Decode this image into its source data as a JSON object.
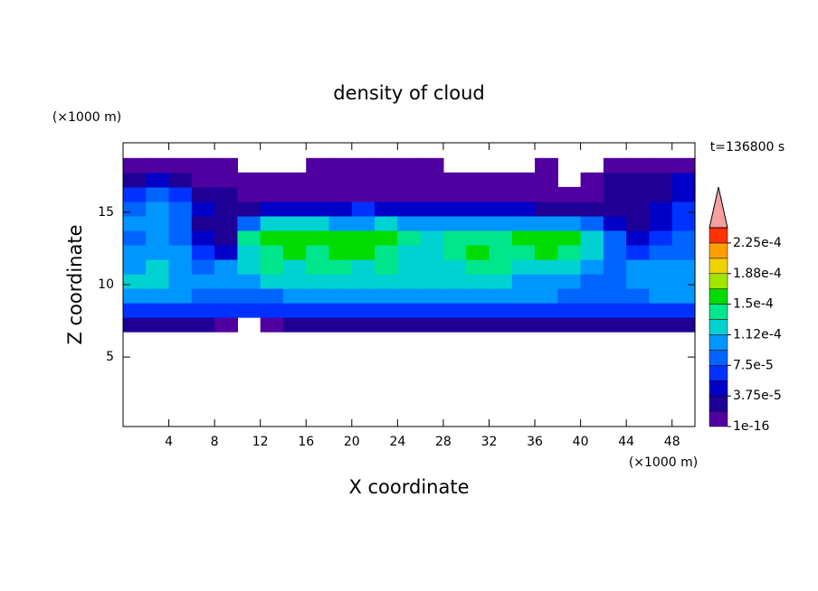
{
  "chart_data": {
    "type": "contour",
    "title": "density of cloud",
    "x_label": "X coordinate",
    "y_label": "Z coordinate",
    "x_unit": "(×1000 m)",
    "y_unit": "(×1000 m)",
    "time_label": "t=136800 s",
    "xlim": [
      0,
      50
    ],
    "xticks": [
      4,
      8,
      12,
      16,
      20,
      24,
      28,
      32,
      36,
      40,
      44,
      48
    ],
    "ylim": [
      0.2,
      19.8
    ],
    "yticks": [
      5,
      10,
      15
    ],
    "field": {
      "x": [
        1,
        3,
        5,
        7,
        9,
        11,
        13,
        15,
        17,
        19,
        21,
        23,
        25,
        27,
        29,
        31,
        33,
        35,
        37,
        39,
        41,
        43,
        45,
        47,
        49
      ],
      "z": [
        7.25,
        8.25,
        9.25,
        10.25,
        11.25,
        12.25,
        13.25,
        14.25,
        15.25,
        16.25,
        17.25,
        18.25
      ],
      "values": [
        [
          2e-05,
          2e-05,
          2e-05,
          2e-05,
          1e-05,
          0,
          1e-05,
          2e-05,
          2e-05,
          2e-05,
          2e-05,
          2e-05,
          2e-05,
          2e-05,
          2e-05,
          2e-05,
          2e-05,
          2e-05,
          2e-05,
          2e-05,
          2e-05,
          2e-05,
          2e-05,
          2e-05,
          2e-05
        ],
        [
          6e-05,
          6e-05,
          6e-05,
          6e-05,
          6e-05,
          6e-05,
          6e-05,
          6e-05,
          6e-05,
          6e-05,
          6e-05,
          6e-05,
          6e-05,
          6e-05,
          6e-05,
          6e-05,
          6e-05,
          6e-05,
          6e-05,
          6e-05,
          6e-05,
          6e-05,
          6e-05,
          6e-05,
          6e-05
        ],
        [
          0.0001,
          0.0001,
          0.0001,
          9e-05,
          8e-05,
          8e-05,
          9e-05,
          0.0001,
          0.0001,
          0.0001,
          0.0001,
          0.0001,
          0.0001,
          0.0001,
          0.0001,
          0.0001,
          0.0001,
          0.0001,
          0.0001,
          9e-05,
          8e-05,
          8e-05,
          9e-05,
          0.0001,
          0.0001
        ],
        [
          0.00012,
          0.00012,
          0.00011,
          0.0001,
          0.0001,
          0.00011,
          0.00012,
          0.00012,
          0.00012,
          0.00012,
          0.00012,
          0.00012,
          0.00012,
          0.00012,
          0.00012,
          0.00012,
          0.00012,
          0.00011,
          0.00011,
          0.0001,
          8e-05,
          8e-05,
          0.0001,
          0.00011,
          0.00011
        ],
        [
          0.00011,
          0.00012,
          0.00011,
          9e-05,
          0.0001,
          0.00013,
          0.00014,
          0.00013,
          0.00014,
          0.00014,
          0.00013,
          0.00014,
          0.00013,
          0.00013,
          0.00013,
          0.00014,
          0.00014,
          0.00013,
          0.00013,
          0.00012,
          0.00011,
          9e-05,
          0.0001,
          0.0001,
          0.00011
        ],
        [
          0.0001,
          0.00011,
          0.0001,
          7e-05,
          5e-05,
          0.00013,
          0.00014,
          0.00015,
          0.00014,
          0.00015,
          0.00016,
          0.00014,
          0.00013,
          0.00013,
          0.00014,
          0.00015,
          0.00014,
          0.00014,
          0.00015,
          0.00014,
          0.00012,
          9e-05,
          7e-05,
          8e-05,
          9e-05
        ],
        [
          9e-05,
          0.0001,
          8e-05,
          5e-05,
          3e-05,
          0.00014,
          0.00015,
          0.00015,
          0.00016,
          0.00016,
          0.00015,
          0.00015,
          0.00014,
          0.00013,
          0.00014,
          0.00014,
          0.00014,
          0.00015,
          0.00015,
          0.00015,
          0.00013,
          9e-05,
          5e-05,
          6e-05,
          8e-05
        ],
        [
          0.0001,
          0.00011,
          9e-05,
          3e-05,
          2e-05,
          9e-05,
          0.00012,
          0.00012,
          0.00012,
          0.00011,
          0.00011,
          0.00012,
          0.00011,
          0.00011,
          0.00011,
          0.00011,
          0.00011,
          0.00011,
          0.0001,
          0.0001,
          8e-05,
          4e-05,
          3e-05,
          5e-05,
          7e-05
        ],
        [
          9e-05,
          0.00011,
          8e-05,
          4e-05,
          2e-05,
          3e-05,
          4e-05,
          4e-05,
          5e-05,
          5e-05,
          6e-05,
          5e-05,
          5e-05,
          5e-05,
          5e-05,
          5e-05,
          4e-05,
          4e-05,
          3e-05,
          3e-05,
          2e-05,
          2e-05,
          3e-05,
          5e-05,
          7e-05
        ],
        [
          6e-05,
          9e-05,
          7e-05,
          3e-05,
          2e-05,
          5e-06,
          5e-06,
          5e-06,
          5e-06,
          5e-06,
          5e-06,
          5e-06,
          5e-06,
          5e-06,
          5e-06,
          5e-06,
          5e-06,
          5e-06,
          5e-06,
          5e-06,
          5e-06,
          2e-05,
          2e-05,
          3e-05,
          5e-05
        ],
        [
          2e-05,
          4e-05,
          3e-05,
          5e-06,
          5e-06,
          5e-06,
          5e-06,
          5e-06,
          5e-06,
          5e-06,
          5e-06,
          5e-06,
          5e-06,
          5e-06,
          5e-06,
          5e-06,
          5e-06,
          5e-06,
          5e-06,
          0,
          5e-06,
          2e-05,
          3e-05,
          3e-05,
          4e-05
        ],
        [
          5e-06,
          5e-06,
          5e-06,
          5e-06,
          5e-06,
          0,
          0,
          0,
          5e-06,
          5e-06,
          5e-06,
          5e-06,
          5e-06,
          5e-06,
          0,
          0,
          0,
          0,
          5e-06,
          0,
          0,
          5e-06,
          5e-06,
          5e-06,
          5e-06
        ]
      ]
    },
    "colorbar": {
      "levels": [
        1e-16,
        1.875e-05,
        3.75e-05,
        5.625e-05,
        7.5e-05,
        9.375e-05,
        0.0001125,
        0.00013125,
        0.00015,
        0.00016875,
        0.0001875,
        0.00020625,
        0.000225,
        0.00024375
      ],
      "colors": [
        "#5000a0",
        "#1e0096",
        "#0000c8",
        "#0032ff",
        "#0064ff",
        "#0096ff",
        "#00d2d2",
        "#00e68c",
        "#00dc00",
        "#a0e600",
        "#f0d200",
        "#ffa000",
        "#ff3200"
      ],
      "over_color": "#f4a0a0",
      "ticks": [
        {
          "value": 1e-16,
          "label": "1e-16"
        },
        {
          "value": 3.75e-05,
          "label": "3.75e-5"
        },
        {
          "value": 7.5e-05,
          "label": "7.5e-5"
        },
        {
          "value": 0.0001125,
          "label": "1.12e-4"
        },
        {
          "value": 0.00015,
          "label": "1.5e-4"
        },
        {
          "value": 0.0001875,
          "label": "1.88e-4"
        },
        {
          "value": 0.000225,
          "label": "2.25e-4"
        }
      ]
    }
  }
}
